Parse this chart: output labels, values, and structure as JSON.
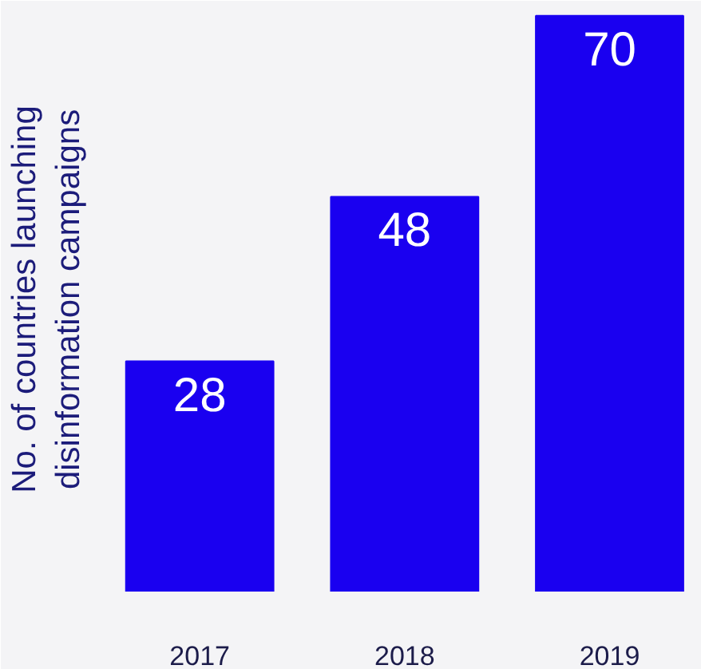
{
  "chart_data": {
    "type": "bar",
    "ylabel": "No. of countries launching\ndisinformation campaigns",
    "categories": [
      "2017",
      "2018",
      "2019"
    ],
    "values": [
      28,
      48,
      70
    ],
    "color": "#1a00f0",
    "data_labels": true
  }
}
